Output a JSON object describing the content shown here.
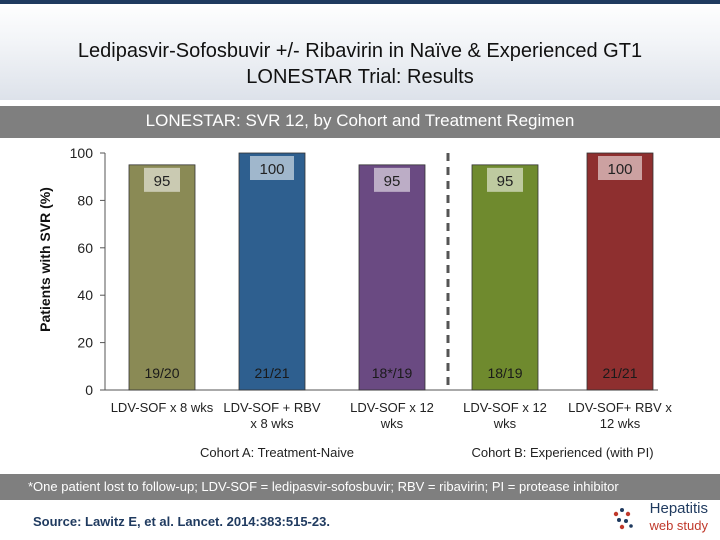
{
  "header": {
    "title_line1": "Ledipasvir-Sofosbuvir +/- Ribavirin in Naïve & Experienced GT1",
    "title_line2": "LONESTAR Trial: Results"
  },
  "subtitle": "LONESTAR: SVR 12, by Cohort and Treatment Regimen",
  "footnote": "*One patient lost to follow-up; LDV-SOF = ledipasvir-sofosbuvir; RBV = ribavirin; PI = protease inhibitor",
  "source": "Source: Lawitz E, et al. Lancet. 2014:383:515-23.",
  "logo": {
    "top": "Hepatitis",
    "bottom": "web study",
    "icon": "hepatitis-dots-icon"
  },
  "chart_data": {
    "type": "bar",
    "title": "LONESTAR: SVR 12, by Cohort and Treatment Regimen",
    "ylabel": "Patients with SVR (%)",
    "ylim": [
      0,
      100
    ],
    "yticks": [
      0,
      20,
      40,
      60,
      80,
      100
    ],
    "categories": [
      [
        "LDV-SOF x 8 wks"
      ],
      [
        "LDV-SOF + RBV",
        "x 8 wks"
      ],
      [
        "LDV-SOF x 12",
        "wks"
      ],
      [
        "LDV-SOF x 12",
        "wks"
      ],
      [
        "LDV-SOF+ RBV x",
        "12 wks"
      ]
    ],
    "values": [
      95,
      100,
      95,
      95,
      100
    ],
    "value_labels": [
      "95",
      "100",
      "95",
      "95",
      "100"
    ],
    "counts": [
      "19/20",
      "21/21",
      "18*/19",
      "18/19",
      "21/21"
    ],
    "colors": [
      "#8a8a55",
      "#2e5f8f",
      "#6a4a82",
      "#6f8a2e",
      "#8e2f2f"
    ],
    "groups": [
      {
        "label": "Cohort A: Treatment-Naive",
        "start": 0,
        "end": 2
      },
      {
        "label": "Cohort B: Experienced (with PI)",
        "start": 3,
        "end": 4
      }
    ]
  }
}
